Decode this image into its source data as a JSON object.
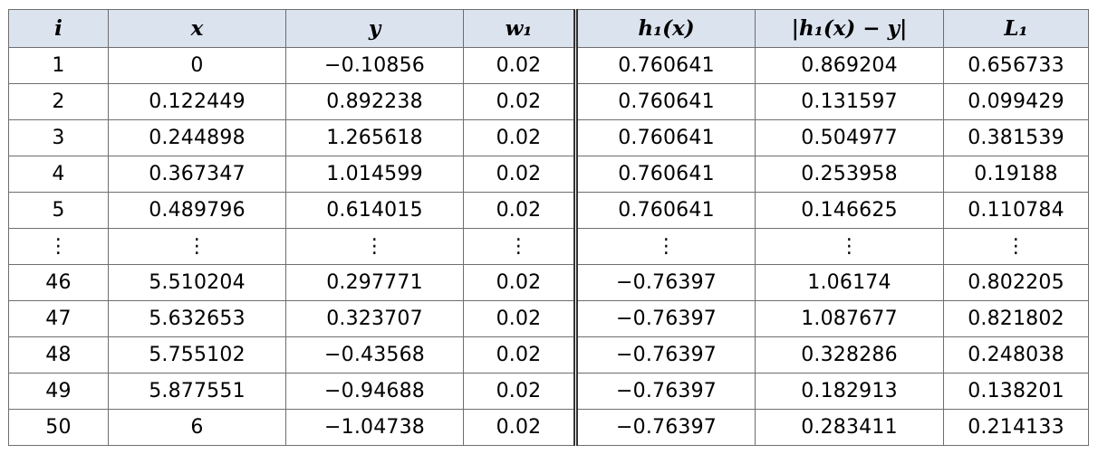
{
  "table": {
    "headers": [
      "i",
      "x",
      "y",
      "w₁",
      "h₁(x)",
      "|h₁(x) − y|",
      "L₁"
    ],
    "rows": [
      [
        "1",
        "0",
        "−0.10856",
        "0.02",
        "0.760641",
        "0.869204",
        "0.656733"
      ],
      [
        "2",
        "0.122449",
        "0.892238",
        "0.02",
        "0.760641",
        "0.131597",
        "0.099429"
      ],
      [
        "3",
        "0.244898",
        "1.265618",
        "0.02",
        "0.760641",
        "0.504977",
        "0.381539"
      ],
      [
        "4",
        "0.367347",
        "1.014599",
        "0.02",
        "0.760641",
        "0.253958",
        "0.19188"
      ],
      [
        "5",
        "0.489796",
        "0.614015",
        "0.02",
        "0.760641",
        "0.146625",
        "0.110784"
      ],
      [
        "⋮",
        "⋮",
        "⋮",
        "⋮",
        "⋮",
        "⋮",
        "⋮"
      ],
      [
        "46",
        "5.510204",
        "0.297771",
        "0.02",
        "−0.76397",
        "1.06174",
        "0.802205"
      ],
      [
        "47",
        "5.632653",
        "0.323707",
        "0.02",
        "−0.76397",
        "1.087677",
        "0.821802"
      ],
      [
        "48",
        "5.755102",
        "−0.43568",
        "0.02",
        "−0.76397",
        "0.328286",
        "0.248038"
      ],
      [
        "49",
        "5.877551",
        "−0.94688",
        "0.02",
        "−0.76397",
        "0.182913",
        "0.138201"
      ],
      [
        "50",
        "6",
        "−1.04738",
        "0.02",
        "−0.76397",
        "0.283411",
        "0.214133"
      ]
    ]
  }
}
